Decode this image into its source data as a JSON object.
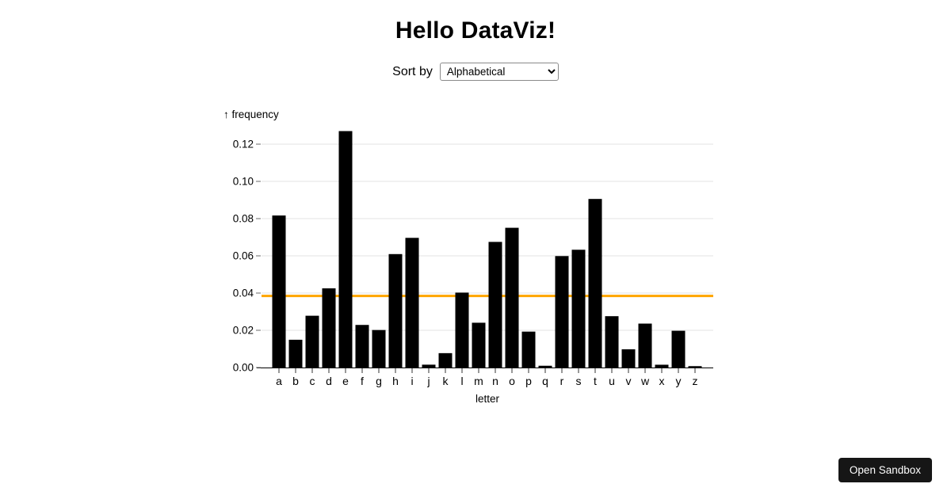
{
  "page": {
    "title": "Hello DataViz!"
  },
  "controls": {
    "sort_by_label": "Sort by",
    "sort_select": {
      "value": "Alphabetical",
      "options": [
        "Alphabetical"
      ]
    }
  },
  "chart_data": {
    "type": "bar",
    "title": "",
    "xlabel": "letter",
    "ylabel": "↑ frequency",
    "categories": [
      "a",
      "b",
      "c",
      "d",
      "e",
      "f",
      "g",
      "h",
      "i",
      "j",
      "k",
      "l",
      "m",
      "n",
      "o",
      "p",
      "q",
      "r",
      "s",
      "t",
      "u",
      "v",
      "w",
      "x",
      "y",
      "z"
    ],
    "values": [
      0.08167,
      0.01492,
      0.02782,
      0.04253,
      0.12702,
      0.02288,
      0.02015,
      0.06094,
      0.06966,
      0.00153,
      0.00772,
      0.04025,
      0.02406,
      0.06749,
      0.07507,
      0.01929,
      0.00095,
      0.05987,
      0.06327,
      0.09056,
      0.02758,
      0.00978,
      0.0236,
      0.0015,
      0.01974,
      0.00074
    ],
    "ylim": [
      0,
      0.13
    ],
    "y_ticks": [
      0,
      0.02,
      0.04,
      0.06,
      0.08,
      0.1,
      0.12
    ],
    "grid": true,
    "legend": "none",
    "bar_color": "#000000",
    "grid_color": "#e3e3e3",
    "axis_color": "#000000",
    "tick_color": "#6b6b6b",
    "mean_line": {
      "value": 0.03846,
      "color": "#ffa500"
    }
  },
  "overlay": {
    "open_sandbox_label": "Open Sandbox"
  }
}
